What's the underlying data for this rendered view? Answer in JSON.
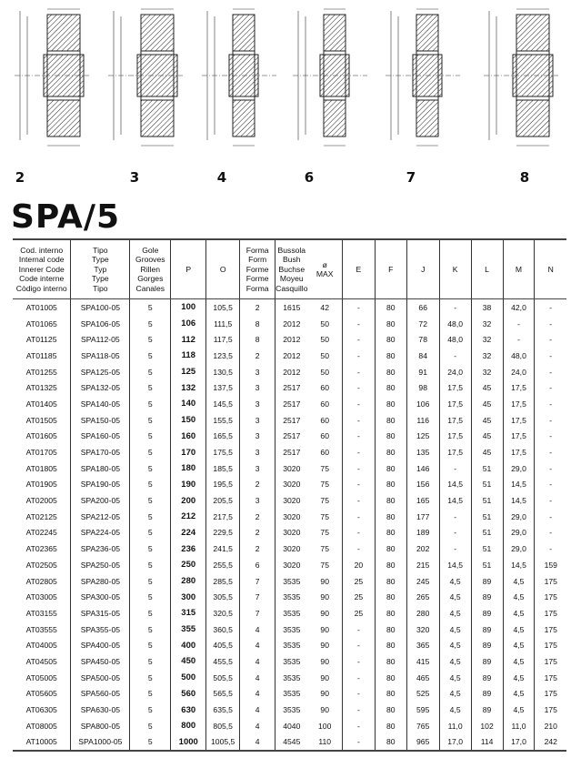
{
  "diagrams": [
    {
      "label": "2"
    },
    {
      "label": "3"
    },
    {
      "label": "4"
    },
    {
      "label": "6"
    },
    {
      "label": "7"
    },
    {
      "label": "8"
    }
  ],
  "title": "SPA/5",
  "table": {
    "headers": [
      "Cod. interno\nInternal code\nInnerer Code\nCode interne\nCòdigo interno",
      "Tipo\nType\nTyp\nType\nTipo",
      "Gole\nGrooves\nRillen\nGorges\nCanales",
      "P",
      "O",
      "Forma\nForm\nForme\nForme\nForma",
      "Bussola\nBush\nBuchse\nMoyeu\nCasquillo",
      "ø\nMAX",
      "E",
      "F",
      "J",
      "K",
      "L",
      "M",
      "N"
    ],
    "rows": [
      [
        "AT01005",
        "SPA100-05",
        "5",
        "100",
        "105,5",
        "2",
        "1615",
        "42",
        "-",
        "80",
        "66",
        "-",
        "38",
        "42,0",
        "-"
      ],
      [
        "AT01065",
        "SPA106-05",
        "5",
        "106",
        "111,5",
        "8",
        "2012",
        "50",
        "-",
        "80",
        "72",
        "48,0",
        "32",
        "-",
        "-"
      ],
      [
        "AT01125",
        "SPA112-05",
        "5",
        "112",
        "117,5",
        "8",
        "2012",
        "50",
        "-",
        "80",
        "78",
        "48,0",
        "32",
        "-",
        "-"
      ],
      [
        "AT01185",
        "SPA118-05",
        "5",
        "118",
        "123,5",
        "2",
        "2012",
        "50",
        "-",
        "80",
        "84",
        "-",
        "32",
        "48,0",
        "-"
      ],
      [
        "AT01255",
        "SPA125-05",
        "5",
        "125",
        "130,5",
        "3",
        "2012",
        "50",
        "-",
        "80",
        "91",
        "24,0",
        "32",
        "24,0",
        "-"
      ],
      [
        "AT01325",
        "SPA132-05",
        "5",
        "132",
        "137,5",
        "3",
        "2517",
        "60",
        "-",
        "80",
        "98",
        "17,5",
        "45",
        "17,5",
        "-"
      ],
      [
        "AT01405",
        "SPA140-05",
        "5",
        "140",
        "145,5",
        "3",
        "2517",
        "60",
        "-",
        "80",
        "106",
        "17,5",
        "45",
        "17,5",
        "-"
      ],
      [
        "AT01505",
        "SPA150-05",
        "5",
        "150",
        "155,5",
        "3",
        "2517",
        "60",
        "-",
        "80",
        "116",
        "17,5",
        "45",
        "17,5",
        "-"
      ],
      [
        "AT01605",
        "SPA160-05",
        "5",
        "160",
        "165,5",
        "3",
        "2517",
        "60",
        "-",
        "80",
        "125",
        "17,5",
        "45",
        "17,5",
        "-"
      ],
      [
        "AT01705",
        "SPA170-05",
        "5",
        "170",
        "175,5",
        "3",
        "2517",
        "60",
        "-",
        "80",
        "135",
        "17,5",
        "45",
        "17,5",
        "-"
      ],
      [
        "AT01805",
        "SPA180-05",
        "5",
        "180",
        "185,5",
        "3",
        "3020",
        "75",
        "-",
        "80",
        "146",
        "-",
        "51",
        "29,0",
        "-"
      ],
      [
        "AT01905",
        "SPA190-05",
        "5",
        "190",
        "195,5",
        "2",
        "3020",
        "75",
        "-",
        "80",
        "156",
        "14,5",
        "51",
        "14,5",
        "-"
      ],
      [
        "AT02005",
        "SPA200-05",
        "5",
        "200",
        "205,5",
        "3",
        "3020",
        "75",
        "-",
        "80",
        "165",
        "14,5",
        "51",
        "14,5",
        "-"
      ],
      [
        "AT02125",
        "SPA212-05",
        "5",
        "212",
        "217,5",
        "2",
        "3020",
        "75",
        "-",
        "80",
        "177",
        "-",
        "51",
        "29,0",
        "-"
      ],
      [
        "AT02245",
        "SPA224-05",
        "5",
        "224",
        "229,5",
        "2",
        "3020",
        "75",
        "-",
        "80",
        "189",
        "-",
        "51",
        "29,0",
        "-"
      ],
      [
        "AT02365",
        "SPA236-05",
        "5",
        "236",
        "241,5",
        "2",
        "3020",
        "75",
        "-",
        "80",
        "202",
        "-",
        "51",
        "29,0",
        "-"
      ],
      [
        "AT02505",
        "SPA250-05",
        "5",
        "250",
        "255,5",
        "6",
        "3020",
        "75",
        "20",
        "80",
        "215",
        "14,5",
        "51",
        "14,5",
        "159"
      ],
      [
        "AT02805",
        "SPA280-05",
        "5",
        "280",
        "285,5",
        "7",
        "3535",
        "90",
        "25",
        "80",
        "245",
        "4,5",
        "89",
        "4,5",
        "175"
      ],
      [
        "AT03005",
        "SPA300-05",
        "5",
        "300",
        "305,5",
        "7",
        "3535",
        "90",
        "25",
        "80",
        "265",
        "4,5",
        "89",
        "4,5",
        "175"
      ],
      [
        "AT03155",
        "SPA315-05",
        "5",
        "315",
        "320,5",
        "7",
        "3535",
        "90",
        "25",
        "80",
        "280",
        "4,5",
        "89",
        "4,5",
        "175"
      ],
      [
        "AT03555",
        "SPA355-05",
        "5",
        "355",
        "360,5",
        "4",
        "3535",
        "90",
        "-",
        "80",
        "320",
        "4,5",
        "89",
        "4,5",
        "175"
      ],
      [
        "AT04005",
        "SPA400-05",
        "5",
        "400",
        "405,5",
        "4",
        "3535",
        "90",
        "-",
        "80",
        "365",
        "4,5",
        "89",
        "4,5",
        "175"
      ],
      [
        "AT04505",
        "SPA450-05",
        "5",
        "450",
        "455,5",
        "4",
        "3535",
        "90",
        "-",
        "80",
        "415",
        "4,5",
        "89",
        "4,5",
        "175"
      ],
      [
        "AT05005",
        "SPA500-05",
        "5",
        "500",
        "505,5",
        "4",
        "3535",
        "90",
        "-",
        "80",
        "465",
        "4,5",
        "89",
        "4,5",
        "175"
      ],
      [
        "AT05605",
        "SPA560-05",
        "5",
        "560",
        "565,5",
        "4",
        "3535",
        "90",
        "-",
        "80",
        "525",
        "4,5",
        "89",
        "4,5",
        "175"
      ],
      [
        "AT06305",
        "SPA630-05",
        "5",
        "630",
        "635,5",
        "4",
        "3535",
        "90",
        "-",
        "80",
        "595",
        "4,5",
        "89",
        "4,5",
        "175"
      ],
      [
        "AT08005",
        "SPA800-05",
        "5",
        "800",
        "805,5",
        "4",
        "4040",
        "100",
        "-",
        "80",
        "765",
        "11,0",
        "102",
        "11,0",
        "210"
      ],
      [
        "AT10005",
        "SPA1000-05",
        "5",
        "1000",
        "1005,5",
        "4",
        "4545",
        "110",
        "-",
        "80",
        "965",
        "17,0",
        "114",
        "17,0",
        "242"
      ]
    ]
  }
}
